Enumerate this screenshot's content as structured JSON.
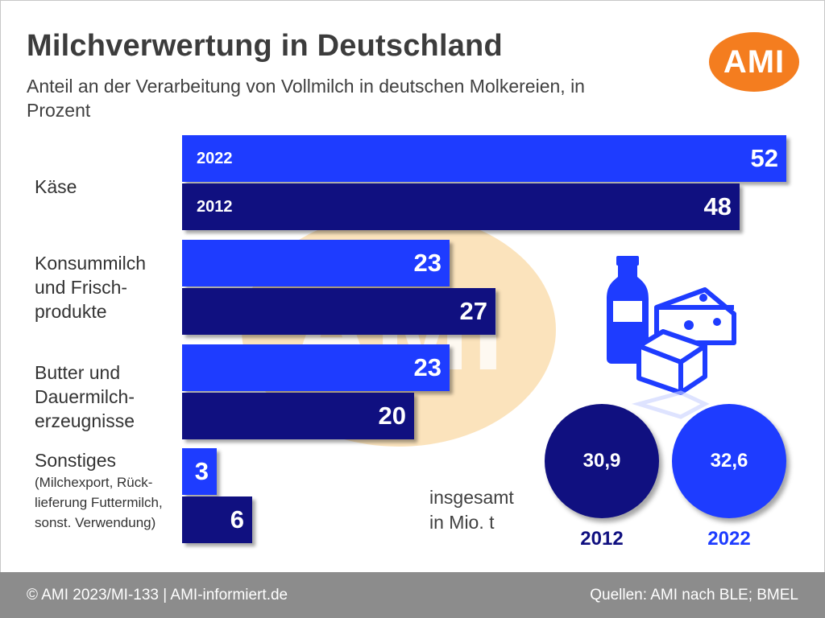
{
  "title": "Milchverwertung in Deutschland",
  "subtitle": "Anteil an der Verarbeitung von Vollmilch in deutschen Molkereien, in Prozent",
  "logo": {
    "text": "AMI",
    "color": "#f47d1f"
  },
  "colors": {
    "year_2022": "#1e3cff",
    "year_2012": "#101080"
  },
  "chart_data": {
    "type": "bar",
    "orientation": "horizontal",
    "categories": [
      "Käse",
      "Konsummilch und Frisch-produkte",
      "Butter und Dauermilch-erzeugnisse",
      "Sonstiges (Milchexport, Rück-lieferung Futtermilch, sonst. Verwendung)"
    ],
    "series": [
      {
        "name": "2022",
        "values": [
          52,
          23,
          23,
          3
        ]
      },
      {
        "name": "2012",
        "values": [
          48,
          27,
          20,
          6
        ]
      }
    ],
    "title": "Milchverwertung in Deutschland",
    "subtitle": "Anteil an der Verarbeitung von Vollmilch in deutschen Molkereien, in Prozent",
    "xlim": [
      0,
      52
    ],
    "grid": false
  },
  "category_labels": {
    "kaese": "Käse",
    "konsummilch_line1": "Konsummilch",
    "konsummilch_line2": "und Frisch-",
    "konsummilch_line3": "produkte",
    "butter_line1": "Butter und",
    "butter_line2": "Dauermilch-",
    "butter_line3": "erzeugnisse",
    "sonstiges_line1": "Sonstiges",
    "sonstiges_note1": "(Milchexport, Rück-",
    "sonstiges_note2": "lieferung Futtermilch,",
    "sonstiges_note3": "sonst. Verwendung)"
  },
  "year_labels": {
    "y2022": "2022",
    "y2012": "2012"
  },
  "totals": {
    "label_line1": "insgesamt",
    "label_line2": "in Mio. t",
    "values": [
      {
        "year": "2012",
        "value": "30,9"
      },
      {
        "year": "2022",
        "value": "32,6"
      }
    ]
  },
  "footer": {
    "left": "© AMI 2023/MI-133 | AMI-informiert.de",
    "right": "Quellen: AMI nach BLE; BMEL"
  }
}
